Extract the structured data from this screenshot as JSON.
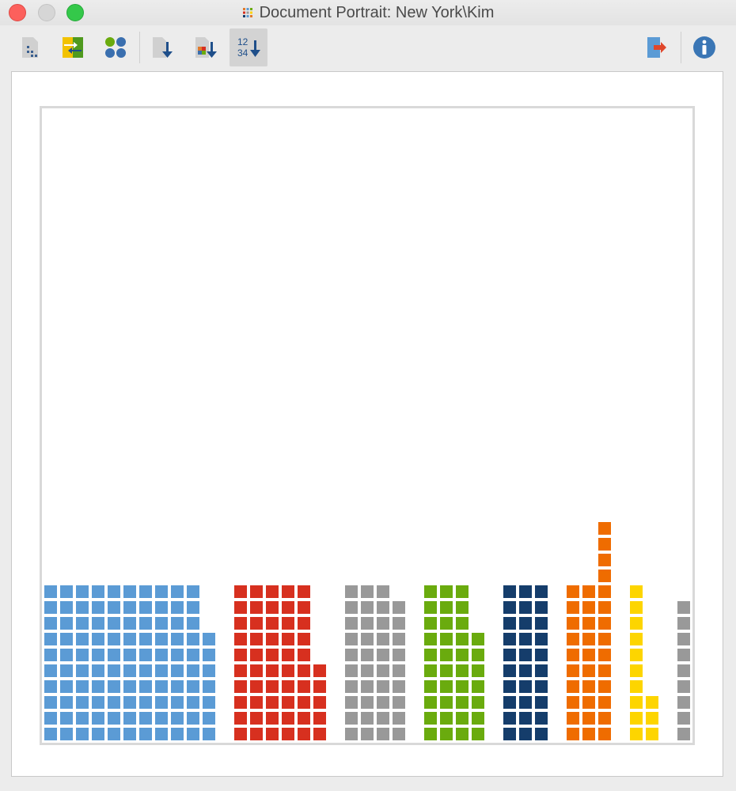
{
  "window": {
    "title": "Document Portrait: New York\\Kim"
  },
  "toolbar": {
    "buttons": [
      {
        "name": "toggle-grid-button",
        "icon": "grid-dots-icon"
      },
      {
        "name": "swap-colors-button",
        "icon": "swap-colors-icon"
      },
      {
        "name": "circles-view-button",
        "icon": "circles-icon"
      },
      {
        "name": "sort-button",
        "icon": "sort-down-icon"
      },
      {
        "name": "sort-by-color-button",
        "icon": "sort-color-icon"
      },
      {
        "name": "sort-by-number-button",
        "icon": "sort-number-icon",
        "active": true,
        "label_top": "12",
        "label_bottom": "34"
      },
      {
        "name": "export-button",
        "icon": "export-icon"
      },
      {
        "name": "info-button",
        "icon": "info-icon"
      }
    ]
  },
  "chart_data": {
    "type": "tile-portrait",
    "columns": [
      {
        "color": "#5b9bd5",
        "count": 10
      },
      {
        "color": "#5b9bd5",
        "count": 10
      },
      {
        "color": "#5b9bd5",
        "count": 10
      },
      {
        "color": "#5b9bd5",
        "count": 10
      },
      {
        "color": "#5b9bd5",
        "count": 10
      },
      {
        "color": "#5b9bd5",
        "count": 10
      },
      {
        "color": "#5b9bd5",
        "count": 10
      },
      {
        "color": "#5b9bd5",
        "count": 10
      },
      {
        "color": "#5b9bd5",
        "count": 10
      },
      {
        "color": "#5b9bd5",
        "count": 10
      },
      {
        "color": "#5b9bd5",
        "count": 7
      },
      {
        "color": null,
        "count": 0
      },
      {
        "color": "#d7301f",
        "count": 10
      },
      {
        "color": "#d7301f",
        "count": 10
      },
      {
        "color": "#d7301f",
        "count": 10
      },
      {
        "color": "#d7301f",
        "count": 10
      },
      {
        "color": "#d7301f",
        "count": 10
      },
      {
        "color": "#d7301f",
        "count": 5
      },
      {
        "color": null,
        "count": 0
      },
      {
        "color": "#999999",
        "count": 10
      },
      {
        "color": "#999999",
        "count": 10
      },
      {
        "color": "#999999",
        "count": 10
      },
      {
        "color": "#999999",
        "count": 9
      },
      {
        "color": null,
        "count": 0
      },
      {
        "color": "#6aab0e",
        "count": 10
      },
      {
        "color": "#6aab0e",
        "count": 10
      },
      {
        "color": "#6aab0e",
        "count": 10
      },
      {
        "color": "#6aab0e",
        "count": 7
      },
      {
        "color": null,
        "count": 0
      },
      {
        "color": "#153d6b",
        "count": 10
      },
      {
        "color": "#153d6b",
        "count": 10
      },
      {
        "color": "#153d6b",
        "count": 10
      },
      {
        "color": null,
        "count": 0
      },
      {
        "color": "#ef6c00",
        "count": 10
      },
      {
        "color": "#ef6c00",
        "count": 10
      },
      {
        "color": "#ef6c00",
        "count": 14
      },
      {
        "color": null,
        "count": 0
      },
      {
        "color": "#fdd500",
        "count": 10
      },
      {
        "color": "#fdd500",
        "count": 3
      },
      {
        "color": null,
        "count": 0
      },
      {
        "color": "#999999",
        "count": 9
      }
    ],
    "rows_per_column": 40,
    "fill_from": "bottom"
  }
}
